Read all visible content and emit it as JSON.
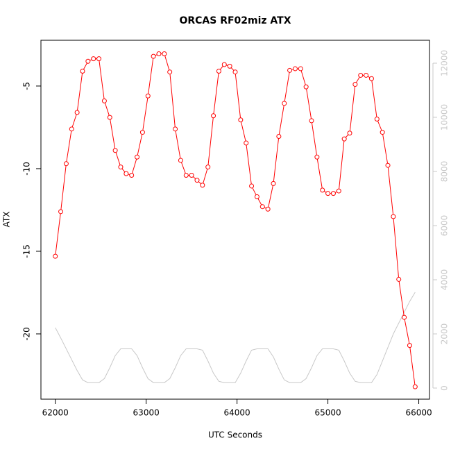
{
  "chart_data": {
    "type": "line",
    "title": "ORCAS RF02miz ATX",
    "x_label": "UTC Seconds",
    "y_label": "ATX",
    "x": [
      62000,
      62060,
      62120,
      62180,
      62240,
      62300,
      62360,
      62420,
      62480,
      62540,
      62600,
      62660,
      62720,
      62780,
      62840,
      62900,
      62960,
      63020,
      63080,
      63140,
      63200,
      63260,
      63320,
      63380,
      63440,
      63500,
      63560,
      63620,
      63680,
      63740,
      63800,
      63860,
      63920,
      63980,
      64040,
      64100,
      64160,
      64220,
      64280,
      64340,
      64400,
      64460,
      64520,
      64580,
      64640,
      64700,
      64760,
      64820,
      64880,
      64940,
      65000,
      65060,
      65120,
      65180,
      65240,
      65300,
      65360,
      65420,
      65480,
      65540,
      65600,
      65660,
      65720,
      65780,
      65840,
      65900,
      65960
    ],
    "series": [
      {
        "color": "#ff0000",
        "markers": true,
        "values": [
          -15.3,
          -12.6,
          -9.7,
          -7.6,
          -6.6,
          -4.1,
          -3.5,
          -3.35,
          -3.35,
          -5.9,
          -6.9,
          -8.9,
          -9.9,
          -10.3,
          -10.4,
          -9.3,
          -7.8,
          -5.6,
          -3.2,
          -3.05,
          -3.05,
          -4.15,
          -7.6,
          -9.5,
          -10.4,
          -10.4,
          -10.7,
          -11.0,
          -9.9,
          -6.8,
          -4.1,
          -3.7,
          -3.8,
          -4.15,
          -7.05,
          -8.45,
          -11.05,
          -11.7,
          -12.3,
          -12.45,
          -10.9,
          -8.05,
          -6.05,
          -4.05,
          -3.95,
          -3.95,
          -5.05,
          -7.1,
          -9.3,
          -11.3,
          -11.5,
          -11.5,
          -11.35,
          -8.2,
          -7.85,
          -4.9,
          -4.35,
          -4.35,
          -4.55,
          -7.0,
          -7.8,
          -9.8,
          -12.9,
          -16.7,
          -19.0,
          -20.7,
          -23.2
        ]
      },
      {
        "color": "#c8c8c8",
        "axis": "y2",
        "markers": false,
        "values": [
          2230,
          1850,
          1450,
          1050,
          650,
          300,
          200,
          200,
          200,
          350,
          750,
          1200,
          1450,
          1450,
          1450,
          1200,
          750,
          350,
          200,
          200,
          200,
          350,
          750,
          1200,
          1450,
          1450,
          1450,
          1400,
          1000,
          550,
          250,
          200,
          200,
          200,
          550,
          1000,
          1400,
          1450,
          1450,
          1450,
          1150,
          700,
          300,
          200,
          200,
          200,
          350,
          750,
          1200,
          1450,
          1450,
          1450,
          1400,
          1000,
          550,
          250,
          200,
          200,
          200,
          500,
          1000,
          1500,
          2000,
          2400,
          2800,
          3200,
          3540
        ]
      }
    ],
    "xlim": [
      61842,
      66118
    ],
    "xticks": [
      62000,
      63000,
      64000,
      65000,
      66000
    ],
    "ylim": [
      -23.95,
      -2.23
    ],
    "yticks": [
      -5,
      -10,
      -15,
      -20
    ],
    "y2lim": [
      -410,
      12846
    ],
    "y2ticks": [
      0,
      2000,
      4000,
      6000,
      8000,
      10000,
      12000
    ],
    "y2_color": "#c8c8c8"
  }
}
